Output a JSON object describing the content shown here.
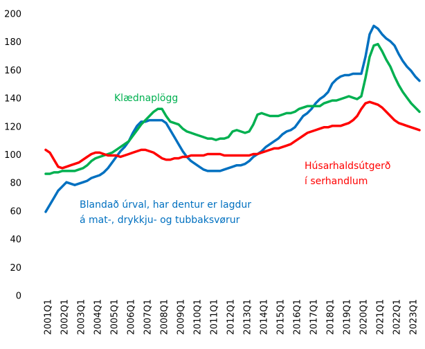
{
  "chart_data": {
    "type": "line",
    "categories": [
      "2001Q1",
      null,
      null,
      null,
      "2002Q1",
      null,
      null,
      null,
      "2003Q1",
      null,
      null,
      null,
      "2004Q1",
      null,
      null,
      null,
      "2005Q1",
      null,
      null,
      null,
      "2006Q1",
      null,
      null,
      null,
      "2007Q1",
      null,
      null,
      null,
      "2008Q1",
      null,
      null,
      null,
      "2009Q1",
      null,
      null,
      null,
      "2010Q1",
      null,
      null,
      null,
      "2011Q1",
      null,
      null,
      null,
      "2012Q1",
      null,
      null,
      null,
      "2013Q1",
      null,
      null,
      null,
      "2014Q1",
      null,
      null,
      null,
      "2015Q1",
      null,
      null,
      null,
      "2016Q1",
      null,
      null,
      null,
      "2017Q1",
      null,
      null,
      null,
      "2018Q1",
      null,
      null,
      null,
      "2019Q1",
      null,
      null,
      null,
      "2020Q1",
      null,
      null,
      null,
      "2021Q1",
      null,
      null,
      null,
      "2022Q1",
      null,
      null,
      null,
      "2023Q1",
      null,
      null
    ],
    "series": [
      {
        "label_lines": [
          "Blandað úrval, har dentur er lagdur",
          "á mat-, drykkju- og tubbaksvørur"
        ],
        "color": "#0070c0",
        "values": [
          60,
          65,
          70,
          75,
          78,
          81,
          80,
          79,
          80,
          81,
          82,
          84,
          85,
          86,
          88,
          91,
          95,
          99,
          103,
          106,
          110,
          116,
          121,
          124,
          124,
          125,
          125,
          125,
          125,
          123,
          118,
          113,
          108,
          103,
          99,
          96,
          94,
          92,
          90,
          89,
          89,
          89,
          89,
          90,
          91,
          92,
          93,
          93,
          94,
          96,
          99,
          101,
          103,
          106,
          108,
          110,
          112,
          115,
          117,
          118,
          120,
          124,
          128,
          130,
          133,
          137,
          140,
          142,
          145,
          151,
          154,
          156,
          157,
          157,
          158,
          158,
          158,
          170,
          186,
          192,
          190,
          186,
          183,
          181,
          178,
          172,
          167,
          163,
          160,
          156,
          153
        ]
      },
      {
        "label_lines": [
          "Klædnaplögg"
        ],
        "color": "#00b050",
        "values": [
          87,
          87,
          88,
          88,
          89,
          89,
          89,
          89,
          90,
          91,
          93,
          96,
          98,
          99,
          100,
          101,
          102,
          104,
          106,
          108,
          110,
          114,
          118,
          122,
          125,
          128,
          131,
          133,
          133,
          128,
          124,
          123,
          122,
          119,
          117,
          116,
          115,
          114,
          113,
          112,
          112,
          111,
          112,
          112,
          113,
          117,
          118,
          117,
          116,
          117,
          122,
          129,
          130,
          129,
          128,
          128,
          128,
          129,
          130,
          130,
          131,
          133,
          134,
          135,
          135,
          135,
          135,
          137,
          138,
          139,
          139,
          140,
          141,
          142,
          141,
          140,
          142,
          155,
          170,
          178,
          179,
          174,
          168,
          163,
          156,
          150,
          145,
          141,
          137,
          134,
          131
        ]
      },
      {
        "label_lines": [
          "Húsarhaldsútgerð",
          "í serhandlum"
        ],
        "color": "#ff0000",
        "values": [
          104,
          102,
          97,
          92,
          91,
          92,
          93,
          94,
          95,
          97,
          99,
          101,
          102,
          102,
          101,
          100,
          100,
          100,
          99,
          100,
          101,
          102,
          103,
          104,
          104,
          103,
          102,
          100,
          98,
          97,
          97,
          98,
          98,
          99,
          99,
          100,
          100,
          100,
          100,
          101,
          101,
          101,
          101,
          100,
          100,
          100,
          100,
          100,
          100,
          100,
          101,
          101,
          102,
          103,
          104,
          105,
          105,
          106,
          107,
          108,
          110,
          112,
          114,
          116,
          117,
          118,
          119,
          120,
          120,
          121,
          121,
          121,
          122,
          123,
          125,
          128,
          133,
          137,
          138,
          137,
          136,
          134,
          131,
          128,
          125,
          123,
          122,
          121,
          120,
          119,
          118
        ]
      }
    ],
    "ylim": [
      0,
      200
    ],
    "yticks": [
      0,
      20,
      40,
      60,
      80,
      100,
      120,
      140,
      160,
      180,
      200
    ],
    "grid": false
  }
}
